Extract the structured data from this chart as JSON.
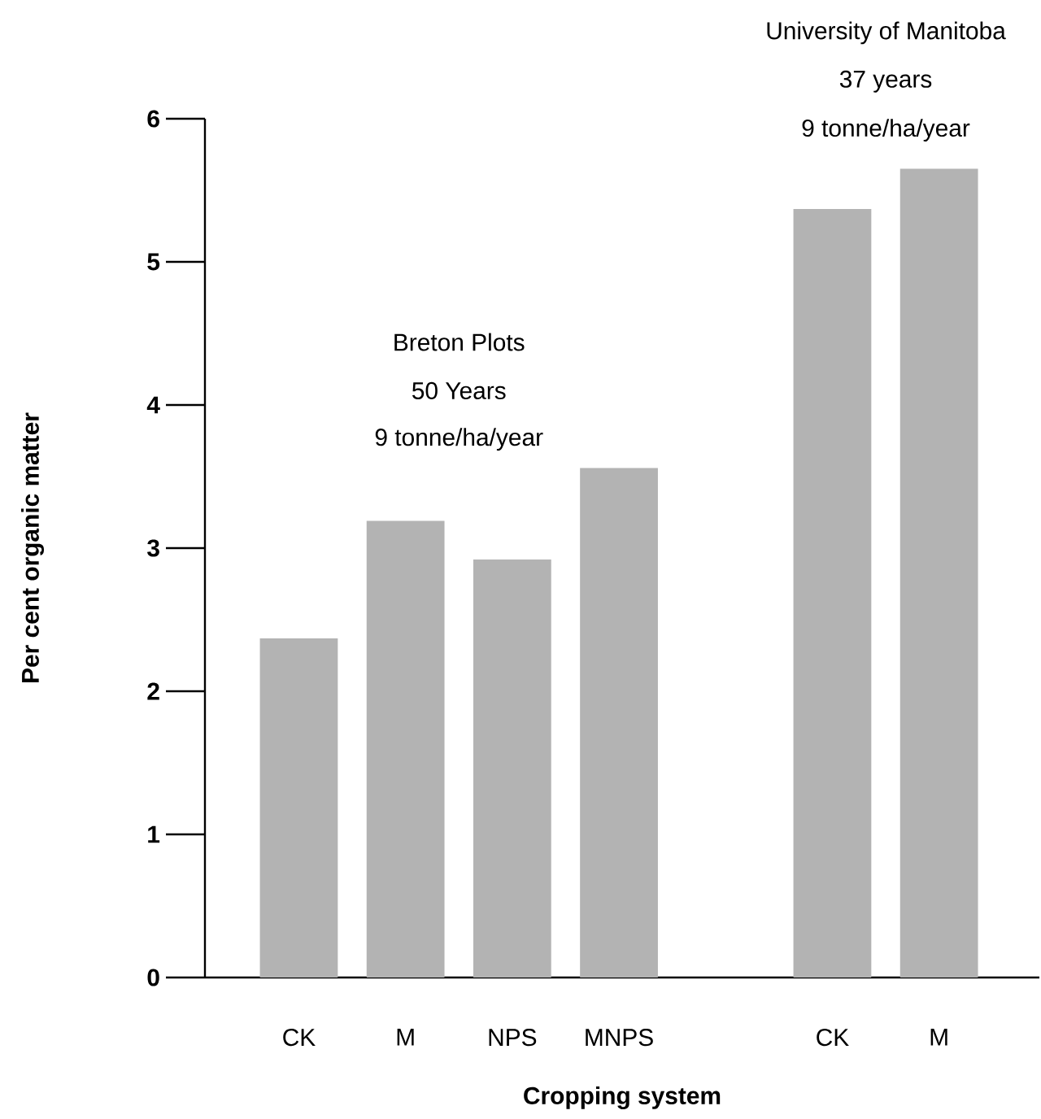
{
  "chart_data": {
    "type": "bar",
    "xlabel": "Cropping system",
    "ylabel": "Per cent organic matter",
    "categories": [
      "CK",
      "M",
      "NPS",
      "MNPS",
      null,
      "CK",
      "M"
    ],
    "values": [
      2.37,
      3.19,
      2.92,
      3.56,
      null,
      5.37,
      5.65
    ],
    "color": "#b3b3b3",
    "ylim": [
      0,
      6
    ],
    "yticks": [
      0,
      1,
      2,
      3,
      4,
      5,
      6
    ],
    "grid": false,
    "annotations": [
      "Breton Plots",
      "50 Years",
      "9 tonne/ha/year",
      "University of Manitoba",
      "37 years",
      "9 tonne/ha/year"
    ]
  }
}
